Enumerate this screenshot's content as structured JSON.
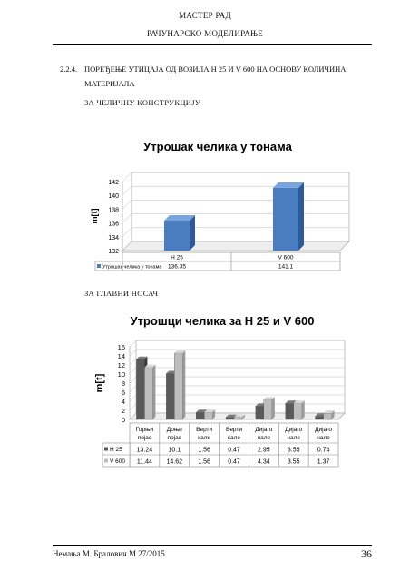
{
  "header": {
    "line1": "МАСТЕР РАД",
    "line2": "РАЧУНАРСКО МОДЕЛИРАЊЕ"
  },
  "section": {
    "number": "2.2.4.",
    "title": "ПОРЕЂЕЊЕ УТИЦАЈА ОД ВОЗИЛА Н 25 И V 600 НА ОСНОВУ КОЛИЧИНА МАТЕРИЈАЛА"
  },
  "subheading1": "ЗА ЧЕЛИЧНУ КОНСТРУКЦИЈУ",
  "subheading2": "ЗА ГЛАВНИ НОСАЧ",
  "chart_data": [
    {
      "type": "bar",
      "title": "Утрошак челика у тонама",
      "ylabel": "m[t]",
      "categories": [
        "Н 25",
        "V 600"
      ],
      "category_labels": [
        "Н 25",
        "V 600"
      ],
      "value_labels": [
        "136.35",
        "141.1"
      ],
      "series": [
        {
          "name": "Утрошак челика у тонама",
          "values": [
            136.35,
            141.1
          ]
        }
      ],
      "ylim": [
        132,
        142
      ],
      "yticks": [
        "132",
        "134",
        "136",
        "138",
        "140",
        "142"
      ],
      "grid": true,
      "legend": "table-left",
      "colors": {
        "bar": "#4a7cc0",
        "bar_side": "#2e5a9a",
        "bar_top": "#7aa4dc"
      }
    },
    {
      "type": "bar",
      "title": "Утрошци челика за Н 25 и V 600",
      "ylabel": "m[t]",
      "categories": [
        [
          "Горњи",
          "појас"
        ],
        [
          "Доњи",
          "појас"
        ],
        [
          "Верти",
          "кале"
        ],
        [
          "Верти",
          "кале"
        ],
        [
          "Дијаго",
          "нале"
        ],
        [
          "Дијаго",
          "нале"
        ],
        [
          "Дијаго",
          "нале"
        ]
      ],
      "cat_line1": [
        "Горњи",
        "Доњи",
        "Верти",
        "Верти",
        "Дијаго",
        "Дијаго",
        "Дијаго"
      ],
      "cat_line2": [
        "појас",
        "појас",
        "кале",
        "кале",
        "нале",
        "нале",
        "нале"
      ],
      "series": [
        {
          "name": "Н 25",
          "values": [
            13.24,
            10.1,
            1.56,
            0.47,
            2.95,
            3.55,
            0.74
          ],
          "labels": [
            "13.24",
            "10.1",
            "1.56",
            "0.47",
            "2.95",
            "3.55",
            "0.74"
          ]
        },
        {
          "name": "V 600",
          "values": [
            11.44,
            14.62,
            1.56,
            0.47,
            4.34,
            3.55,
            1.37
          ],
          "labels": [
            "11.44",
            "14.62",
            "1.56",
            "0.47",
            "4.34",
            "3.55",
            "1.37"
          ]
        }
      ],
      "ylim": [
        0,
        16
      ],
      "yticks": [
        "0",
        "2",
        "4",
        "6",
        "8",
        "10",
        "12",
        "14",
        "16"
      ],
      "grid": true,
      "legend": "table-left",
      "colors": {
        "s1": "#5a5a5a",
        "s2": "#bdbdbd"
      }
    }
  ],
  "footer": {
    "author": "Немања М. Бралович М 27/2015",
    "page": "36"
  }
}
